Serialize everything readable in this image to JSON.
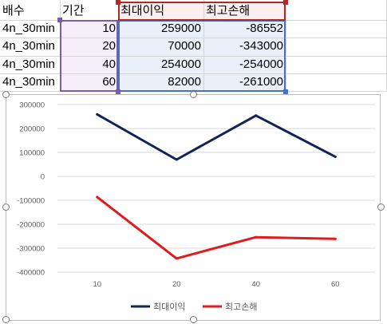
{
  "table": {
    "headers": [
      "배수",
      "기간",
      "최대이익",
      "최고손해"
    ],
    "rows": [
      [
        "4n_30min",
        "10",
        "259000",
        "-86552"
      ],
      [
        "4n_30min",
        "20",
        "70000",
        "-343000"
      ],
      [
        "4n_30min",
        "40",
        "254000",
        "-254000"
      ],
      [
        "4n_30min",
        "60",
        "82000",
        "-261000"
      ]
    ]
  },
  "colors": {
    "series1": "#0f2355",
    "series2": "#e01b1b",
    "range_purple": "#7b5ca8",
    "range_blue": "#4472c4",
    "range_red": "#b02a2a"
  },
  "chart_data": {
    "type": "line",
    "categories": [
      "10",
      "20",
      "40",
      "60"
    ],
    "series": [
      {
        "name": "최대이익",
        "values": [
          259000,
          70000,
          254000,
          82000
        ]
      },
      {
        "name": "최고손해",
        "values": [
          -86552,
          -343000,
          -254000,
          -261000
        ]
      }
    ],
    "yticks": [
      "300000",
      "200000",
      "100000",
      "0",
      "-100000",
      "-200000",
      "-300000",
      "-400000"
    ],
    "ylim": [
      -400000,
      300000
    ],
    "grid": true,
    "legend": "bottom"
  }
}
